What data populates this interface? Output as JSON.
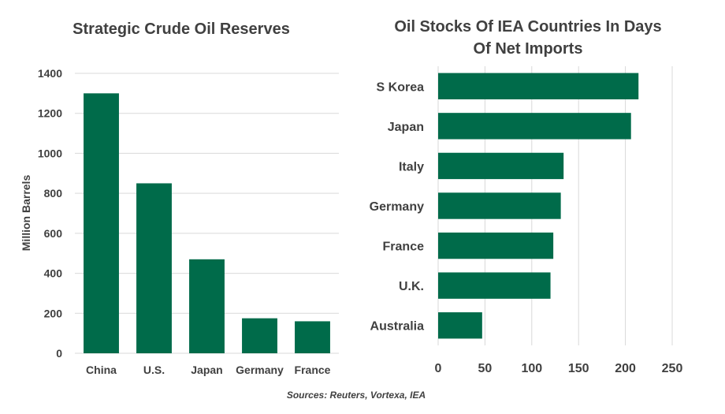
{
  "chart_data": [
    {
      "type": "bar",
      "title": "Strategic Crude Oil Reserves",
      "categories": [
        "China",
        "U.S.",
        "Japan",
        "Germany",
        "France"
      ],
      "values": [
        1300,
        850,
        470,
        175,
        160
      ],
      "xlabel": "",
      "ylabel": "Million Barrels",
      "ylim": [
        0,
        1400
      ],
      "yticks": [
        0,
        200,
        400,
        600,
        800,
        1000,
        1200,
        1400
      ],
      "grid": true,
      "color": "#006b4a"
    },
    {
      "type": "barh",
      "title_lines": [
        "Oil Stocks Of IEA Countries In Days",
        "Of Net Imports"
      ],
      "categories": [
        "S Korea",
        "Japan",
        "Italy",
        "Germany",
        "France",
        "U.K.",
        "Australia"
      ],
      "values": [
        214,
        206,
        134,
        131,
        123,
        120,
        47
      ],
      "xlim": [
        0,
        250
      ],
      "xticks": [
        0,
        50,
        100,
        150,
        200,
        250
      ],
      "grid": true,
      "color": "#006b4a"
    }
  ],
  "source": "Sources: Reuters, Vortexa, IEA"
}
